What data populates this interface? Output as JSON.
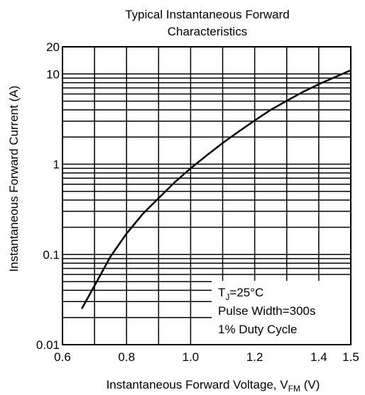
{
  "chart_data": {
    "type": "line",
    "title": [
      "Typical  Instantaneous Forward",
      "Characteristics"
    ],
    "xlabel": {
      "main": "Instantaneous Forward Voltage, V",
      "sub": "FM",
      "tail": " (V)"
    },
    "ylabel": "Instantaneous Forward Current (A)",
    "x_scale": "linear",
    "y_scale": "log",
    "xlim": [
      0.6,
      1.5
    ],
    "ylim": [
      0.01,
      20
    ],
    "x_ticks": [
      {
        "value": 0.6,
        "label": "0.6"
      },
      {
        "value": 0.8,
        "label": "0.8"
      },
      {
        "value": 1.0,
        "label": "1.0"
      },
      {
        "value": 1.2,
        "label": "1.2"
      },
      {
        "value": 1.4,
        "label": "1.4"
      },
      {
        "value": 1.5,
        "label": "1.5"
      }
    ],
    "y_ticks": [
      {
        "value": 0.01,
        "label": "0.01"
      },
      {
        "value": 0.1,
        "label": "0.1"
      },
      {
        "value": 1,
        "label": "1"
      },
      {
        "value": 10,
        "label": "10"
      },
      {
        "value": 20,
        "label": "20"
      }
    ],
    "x_grid": [
      0.7,
      0.8,
      0.9,
      1.0,
      1.1,
      1.2,
      1.3,
      1.4
    ],
    "y_grid": [
      0.02,
      0.03,
      0.04,
      0.05,
      0.06,
      0.07,
      0.08,
      0.09,
      0.1,
      0.2,
      0.3,
      0.4,
      0.5,
      0.6,
      0.7,
      0.8,
      0.9,
      1,
      2,
      3,
      4,
      5,
      6,
      7,
      8,
      9,
      10
    ],
    "grid": true,
    "series": [
      {
        "x": [
          0.66,
          0.7,
          0.75,
          0.8,
          0.85,
          0.9,
          0.95,
          1.0,
          1.05,
          1.1,
          1.15,
          1.2,
          1.25,
          1.3,
          1.35,
          1.4,
          1.45,
          1.5
        ],
        "y": [
          0.025,
          0.045,
          0.095,
          0.17,
          0.28,
          0.42,
          0.63,
          0.9,
          1.25,
          1.72,
          2.3,
          3.05,
          4.0,
          5.05,
          6.3,
          7.7,
          9.2,
          11.0
        ],
        "color": "#000000"
      }
    ],
    "annotations": [
      {
        "main": "T",
        "sub": "J",
        "tail": "=25°C"
      },
      {
        "main": "Pulse Width=300s",
        "sub": "",
        "tail": ""
      },
      {
        "main": "1% Duty Cycle",
        "sub": "",
        "tail": ""
      }
    ]
  }
}
